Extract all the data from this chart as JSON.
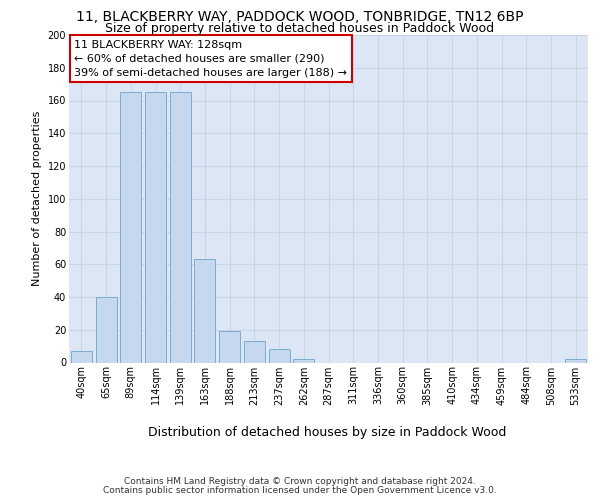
{
  "title1": "11, BLACKBERRY WAY, PADDOCK WOOD, TONBRIDGE, TN12 6BP",
  "title2": "Size of property relative to detached houses in Paddock Wood",
  "xlabel": "Distribution of detached houses by size in Paddock Wood",
  "ylabel": "Number of detached properties",
  "categories": [
    "40sqm",
    "65sqm",
    "89sqm",
    "114sqm",
    "139sqm",
    "163sqm",
    "188sqm",
    "213sqm",
    "237sqm",
    "262sqm",
    "287sqm",
    "311sqm",
    "336sqm",
    "360sqm",
    "385sqm",
    "410sqm",
    "434sqm",
    "459sqm",
    "484sqm",
    "508sqm",
    "533sqm"
  ],
  "values": [
    7,
    40,
    165,
    165,
    165,
    63,
    19,
    13,
    8,
    2,
    0,
    0,
    0,
    0,
    0,
    0,
    0,
    0,
    0,
    0,
    2
  ],
  "bar_color": "#c5d8ee",
  "bar_edge_color": "#7aadd4",
  "annotation_lines": [
    "11 BLACKBERRY WAY: 128sqm",
    "← 60% of detached houses are smaller (290)",
    "39% of semi-detached houses are larger (188) →"
  ],
  "annotation_box_color": "white",
  "annotation_box_edge_color": "#cc0000",
  "ylim": [
    0,
    200
  ],
  "yticks": [
    0,
    20,
    40,
    60,
    80,
    100,
    120,
    140,
    160,
    180,
    200
  ],
  "grid_color": "#c8d4e8",
  "background_color": "#dde6f4",
  "footer_line1": "Contains HM Land Registry data © Crown copyright and database right 2024.",
  "footer_line2": "Contains public sector information licensed under the Open Government Licence v3.0.",
  "title1_fontsize": 10,
  "title2_fontsize": 9,
  "xlabel_fontsize": 9,
  "ylabel_fontsize": 8,
  "tick_fontsize": 7,
  "annotation_fontsize": 8,
  "footer_fontsize": 6.5
}
